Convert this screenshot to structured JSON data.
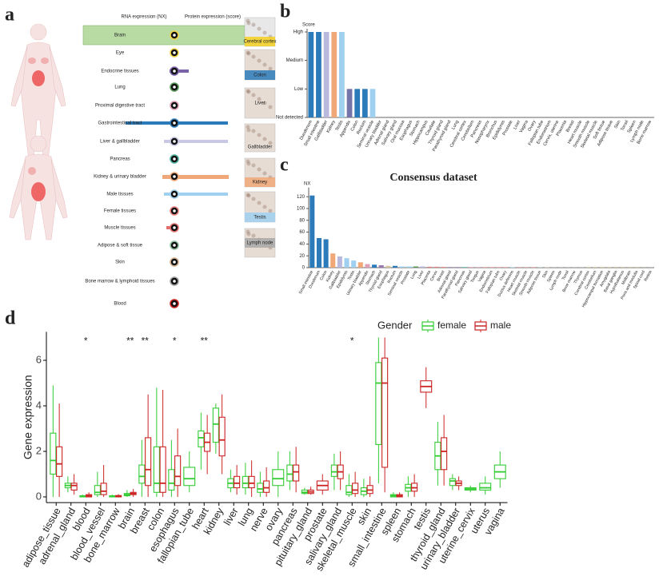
{
  "panel_labels": [
    "a",
    "b",
    "c",
    "d"
  ],
  "panel_a": {
    "headers": [
      "RNA expression (NX)",
      "Protein expression (score)"
    ],
    "tissues": [
      "Brain",
      "Eye",
      "Endocrine tissues",
      "Lung",
      "Proximal digestive tract",
      "Gastrointestinal tract",
      "Liver & gallbladder",
      "Pancreas",
      "Kidney & urinary bladder",
      "Male tissues",
      "Female tissues",
      "Muscle tissues",
      "Adipose & soft tissue",
      "Skin",
      "Bone marrow & lymphoid tissues",
      "Blood"
    ],
    "images": [
      "Cerebral cortex",
      "Colon",
      "Liver",
      "Gallbladder",
      "Kidney",
      "Testis",
      "Lymph node"
    ]
  },
  "chart_data": [
    {
      "type": "bar",
      "y_label": "Score",
      "categories": [
        "Duodenum",
        "Small intestine",
        "Gallbladder",
        "Kidney",
        "Testis",
        "Appendix",
        "Colon",
        "Rectum",
        "Seminal vesicle",
        "Urinary bladder",
        "Adrenal gland",
        "Salivary gland",
        "Oral mucosa",
        "Esophagus",
        "Stomach",
        "Hippocampus",
        "Caudate",
        "Thyroid gland",
        "Parathyroid gland",
        "Lung",
        "Cerebral cortex",
        "Cerebellum",
        "Pancreas",
        "Nasopharynx",
        "Bronchus",
        "Epididymis",
        "Prostate",
        "Liver",
        "Vagina",
        "Ovary",
        "Fallopian tube",
        "Endometrium",
        "Cervix, uterine",
        "Placenta",
        "Breast",
        "Heart muscle",
        "Smooth muscle",
        "Skeletal muscle",
        "Soft tissue",
        "Adipose tissue",
        "Skin",
        "Tonsil",
        "Spleen",
        "Lymph node",
        "Bone marrow"
      ],
      "values": [
        3,
        3,
        3,
        3,
        3,
        1,
        1,
        1,
        1,
        0,
        0,
        0,
        0,
        0,
        0,
        0,
        0,
        0,
        0,
        0,
        0,
        0,
        0,
        0,
        0,
        0,
        0,
        0,
        0,
        0,
        0,
        0,
        0,
        0,
        0,
        0,
        0,
        0,
        0,
        0,
        0,
        0,
        0,
        0,
        0
      ],
      "colors": [
        "#2b7bba",
        "#2b7bba",
        "#b9b9de",
        "#f0a878",
        "#9fd0f0",
        "#7474a8",
        "#2b7bba",
        "#2b7bba",
        "#9fd0f0",
        "#f0a878",
        "#9b77b0",
        "#e0a0b8",
        "#e0a0b8",
        "#e0a0b8",
        "#2b7bba",
        "#f2d24a",
        "#f2d24a",
        "#9b77b0",
        "#9b77b0",
        "#5a9a5a",
        "#f2d24a",
        "#f2d24a",
        "#50b0a0",
        "#5a9a5a",
        "#5a9a5a",
        "#9fd0f0",
        "#9fd0f0",
        "#b9b9de",
        "#e88080",
        "#e88080",
        "#e88080",
        "#e88080",
        "#e88080",
        "#e88080",
        "#e88080",
        "#e07070",
        "#e07070",
        "#e07070",
        "#90c0a0",
        "#90c0a0",
        "#d0b090",
        "#a0a0a0",
        "#a0a0a0",
        "#a0a0a0",
        "#a0a0a0"
      ],
      "ylim": [
        0,
        3
      ],
      "yticks": [
        {
          "value": 0,
          "label": "Not detected"
        },
        {
          "value": 1,
          "label": "Low"
        },
        {
          "value": 2,
          "label": "Medium"
        },
        {
          "value": 3,
          "label": "High"
        }
      ]
    },
    {
      "type": "bar",
      "title": "Consensus dataset",
      "y_label": "NX",
      "categories": [
        "Small intestine",
        "Duodenum",
        "Colon",
        "Kidney",
        "Gallbladder",
        "Epididymis",
        "Testis",
        "Urinary bladder",
        "Appendix",
        "Stomach",
        "Thyroid gland",
        "Esophagus",
        "Rectum",
        "Seminal vesicle",
        "Prostate",
        "Lung",
        "Liver",
        "Placenta",
        "Cervix",
        "Breast",
        "Adrenal gland",
        "Parathyroid gland",
        "Pancreas",
        "Salivary gland",
        "Tongue",
        "Vagina",
        "Endometrium",
        "Fallopian tube",
        "Ovary",
        "Ductus deferens",
        "Heart muscle",
        "Skeletal muscle",
        "Smooth muscle",
        "Adipose tissue",
        "Skin",
        "Spleen",
        "Lymph node",
        "Tonsil",
        "Bone marrow",
        "Thymus",
        "Cerebral cortex",
        "Cerebellum",
        "Hippocampal formation",
        "Amygdala",
        "Basal ganglia",
        "Hypothalamus",
        "Midbrain",
        "Pons and medulla",
        "Spinal cord",
        "Retina"
      ],
      "values": [
        122,
        50,
        48,
        24,
        19,
        16,
        12,
        9,
        6,
        5,
        4,
        3,
        3,
        2,
        2,
        2,
        2,
        1.5,
        1.5,
        1.2,
        1,
        1,
        1,
        1,
        1,
        0.8,
        0.8,
        0.8,
        0.8,
        0.8,
        0.6,
        0.6,
        0.6,
        0.6,
        0.6,
        0.5,
        0.5,
        0.5,
        0.5,
        0.5,
        0.4,
        0.4,
        0.4,
        0.4,
        0.3,
        0.3,
        0.3,
        0.3,
        0.2,
        0.2
      ],
      "colors": [
        "#2b7bba",
        "#2b7bba",
        "#2b7bba",
        "#f0a878",
        "#b9b9de",
        "#9fd0f0",
        "#9fd0f0",
        "#f0a878",
        "#e0a0b8",
        "#2b7bba",
        "#9b77b0",
        "#d9c6a0",
        "#2b7bba",
        "#9fd0f0",
        "#9fd0f0",
        "#5a9a5a",
        "#b9b9de",
        "#e88080",
        "#e88080",
        "#e88080",
        "#9b77b0",
        "#9b77b0",
        "#50b0a0",
        "#e0a0b8",
        "#e0a0b8",
        "#e88080",
        "#e88080",
        "#e88080",
        "#e88080",
        "#9fd0f0",
        "#e07070",
        "#e07070",
        "#e07070",
        "#90c0a0",
        "#d0b090",
        "#a0a0a0",
        "#a0a0a0",
        "#a0a0a0",
        "#a0a0a0",
        "#a0a0a0",
        "#f2d24a",
        "#f2d24a",
        "#f2d24a",
        "#f2d24a",
        "#f2d24a",
        "#f2d24a",
        "#f2d24a",
        "#f2d24a",
        "#f2d24a",
        "#c8c8c8"
      ],
      "ylim": [
        0,
        130
      ],
      "yticks": [
        0,
        20,
        40,
        60,
        80,
        100,
        120
      ]
    },
    {
      "type": "box",
      "y_label": "Gene expression",
      "legend_title": "Gender",
      "categories": [
        "adipose_tissue",
        "adrenal_gland",
        "blood",
        "blood_vessel",
        "bone_marrow",
        "brain",
        "breast",
        "colon",
        "esophagus",
        "fallopian_tube",
        "heart",
        "kidney",
        "liver",
        "lung",
        "nerve",
        "ovary",
        "pancreas",
        "pituitary_gland",
        "prostate",
        "salivary_gland",
        "skeletal_muscle",
        "skin",
        "small_intestine",
        "spleen",
        "stomach",
        "testis",
        "thyroid_gland",
        "urinary_bladder",
        "uterine_cervix",
        "uterus",
        "vagina"
      ],
      "significance": [
        null,
        null,
        "*",
        null,
        null,
        "**",
        "**",
        null,
        "*",
        null,
        "**",
        null,
        null,
        null,
        null,
        null,
        null,
        null,
        null,
        null,
        "*",
        null,
        null,
        null,
        null,
        null,
        null,
        null,
        null,
        null,
        null
      ],
      "series": [
        {
          "name": "female",
          "color": "#33cc33",
          "whisker_low": [
            0,
            0.2,
            0,
            0,
            0,
            0,
            0,
            0,
            0,
            0.2,
            1.2,
            1.9,
            0.2,
            0.1,
            0,
            0,
            0.3,
            0.1,
            null,
            0.3,
            0,
            0,
            0.6,
            0,
            0,
            null,
            0.5,
            0.3,
            0.2,
            0.1,
            0.4
          ],
          "q1": [
            1.0,
            0.4,
            0,
            0.1,
            0,
            0.05,
            0.6,
            0.2,
            0.3,
            0.5,
            2.2,
            2.4,
            0.4,
            0.4,
            0.2,
            0.5,
            0.7,
            0.15,
            null,
            0.9,
            0.1,
            0.1,
            2.3,
            0,
            0.25,
            null,
            1.2,
            0.5,
            0.3,
            0.3,
            0.8
          ],
          "median": [
            1.6,
            0.5,
            0.02,
            0.2,
            0.02,
            0.1,
            0.9,
            0.6,
            0.6,
            0.8,
            2.6,
            3.2,
            0.6,
            0.6,
            0.35,
            0.8,
            1.0,
            0.2,
            null,
            1.1,
            0.2,
            0.25,
            5.0,
            0.05,
            0.4,
            null,
            1.8,
            0.7,
            0.35,
            0.4,
            1.1
          ],
          "q3": [
            2.8,
            0.6,
            0.05,
            0.5,
            0.05,
            0.15,
            1.4,
            2.2,
            1.2,
            1.3,
            2.9,
            3.9,
            0.8,
            0.9,
            0.6,
            1.2,
            1.4,
            0.3,
            null,
            1.4,
            0.5,
            0.4,
            5.9,
            0.1,
            0.55,
            null,
            2.4,
            0.8,
            0.4,
            0.6,
            1.4
          ],
          "whisker_high": [
            4.9,
            0.9,
            0.1,
            1.1,
            0.1,
            0.3,
            2.5,
            4.8,
            2.5,
            2.0,
            3.7,
            4.1,
            1.2,
            1.5,
            1.1,
            2.0,
            2.0,
            0.4,
            null,
            1.9,
            1.0,
            0.8,
            7.0,
            0.2,
            0.9,
            null,
            3.3,
            1.0,
            0.5,
            0.9,
            2.0
          ]
        },
        {
          "name": "male",
          "color": "#cc2222",
          "whisker_low": [
            0,
            0.1,
            0,
            0,
            0,
            0,
            0,
            0,
            0,
            null,
            1.0,
            1.0,
            0.1,
            0,
            0,
            null,
            0.2,
            0.1,
            0.1,
            0.3,
            0,
            0,
            0.2,
            0,
            0,
            3.9,
            0.5,
            0.3,
            null,
            null,
            null
          ],
          "q1": [
            0.9,
            0.3,
            0,
            0.1,
            0,
            0.1,
            0.5,
            0.2,
            0.5,
            null,
            2.0,
            1.8,
            0.4,
            0.4,
            0.2,
            null,
            0.7,
            0.15,
            0.3,
            0.8,
            0.15,
            0.15,
            1.3,
            0,
            0.25,
            4.6,
            1.2,
            0.5,
            null,
            null,
            null
          ],
          "median": [
            1.45,
            0.5,
            0.05,
            0.25,
            0.03,
            0.15,
            1.2,
            0.6,
            0.9,
            null,
            2.4,
            2.5,
            0.6,
            0.6,
            0.4,
            null,
            1.1,
            0.22,
            0.5,
            1.1,
            0.3,
            0.3,
            5.0,
            0.05,
            0.4,
            4.85,
            2.0,
            0.6,
            null,
            null,
            null
          ],
          "q3": [
            2.2,
            0.6,
            0.1,
            0.6,
            0.06,
            0.2,
            2.6,
            2.2,
            1.8,
            null,
            2.8,
            3.5,
            0.9,
            0.9,
            0.7,
            null,
            1.4,
            0.3,
            0.7,
            1.4,
            0.6,
            0.5,
            6.1,
            0.1,
            0.6,
            5.1,
            2.6,
            0.7,
            null,
            null,
            null
          ],
          "whisker_high": [
            4.1,
            1.0,
            0.2,
            1.4,
            0.12,
            0.35,
            4.5,
            4.7,
            3.0,
            null,
            3.6,
            4.5,
            1.4,
            1.6,
            1.3,
            null,
            2.2,
            0.45,
            1.0,
            2.0,
            1.1,
            0.9,
            7.0,
            0.2,
            1.0,
            5.7,
            3.6,
            0.9,
            null,
            null,
            null
          ]
        }
      ],
      "ylim": [
        -0.25,
        7.25
      ],
      "yticks": [
        0,
        2,
        4,
        6
      ]
    }
  ]
}
